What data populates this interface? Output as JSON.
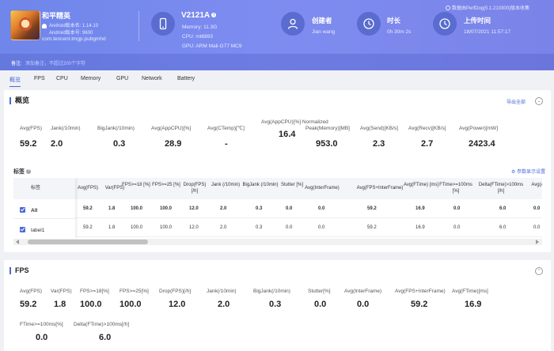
{
  "header": {
    "app_name": "和平精英",
    "version_name": "Android版本名: 1.14.10",
    "version_code": "Android版本号: 9600",
    "package": "com.tencent.tmgp.pubgmhd",
    "device_model": "V2121A",
    "memory": "Memory: 11.3G",
    "cpu": "CPU: mt6893",
    "gpu": "GPU: ARM Mali-G77 MC9",
    "creator_title": "创建者",
    "creator_name": "Jian wang",
    "duration_title": "时长",
    "duration_value": "0h 30m 2s",
    "upload_title": "上传时间",
    "upload_value": "18/07/2021 11:57:17",
    "data_source": "数据由PerfDog(5.1.210300)版本收集",
    "note_label": "备注:",
    "note_placeholder": "添加备注，不超过200个字符"
  },
  "tabs": [
    "概览",
    "FPS",
    "CPU",
    "Memory",
    "GPU",
    "Network",
    "Battery"
  ],
  "overview": {
    "title": "概览",
    "export_label": "导出全部",
    "metrics": [
      {
        "label": "Avg(FPS)",
        "value": "59.2"
      },
      {
        "label": "Jank(/10min)",
        "value": "2.0"
      },
      {
        "label": "BigJank(/10min)",
        "value": "0.3"
      },
      {
        "label": "Avg(AppCPU)[%]",
        "value": "28.9"
      },
      {
        "label": "Avg(CTemp)[℃]",
        "value": "-"
      },
      {
        "label": "Avg(AppCPU)[%] Normalized",
        "value": "16.4"
      },
      {
        "label": "Peak(Memory)[MB]",
        "value": "953.0"
      },
      {
        "label": "Avg(Send)[KB/s]",
        "value": "2.3"
      },
      {
        "label": "Avg(Recv)[KB/s]",
        "value": "2.7"
      },
      {
        "label": "Avg(Power)[mW]",
        "value": "2423.4"
      }
    ],
    "tags_title": "标签",
    "tags_help": "?",
    "settings_label": "参数显示设置",
    "table": {
      "tag_header": "标签",
      "headers": [
        "Avg(FPS)",
        "Var(FPS)",
        "FPS>=18 [%]",
        "FPS>=25 [%]",
        "Drop(FPS) [/h]",
        "Jank (/10min)",
        "BigJank (/10min)",
        "Stutter [%]",
        "Avg(InterFrame)",
        "Avg(FPS+InterFrame)",
        "Avg(FTime) [ms]",
        "FTime>=100ms [%]",
        "Delta(FTime)>100ms [/h]",
        "Avg(A..."
      ],
      "rows": [
        {
          "label": "All",
          "values": [
            "59.2",
            "1.8",
            "100.0",
            "100.0",
            "12.0",
            "2.0",
            "0.3",
            "0.0",
            "0.0",
            "59.2",
            "16.9",
            "0.0",
            "6.0",
            "0.0"
          ]
        },
        {
          "label": "label1",
          "values": [
            "59.2",
            "1.8",
            "100.0",
            "100.0",
            "12.0",
            "2.0",
            "0.3",
            "0.0",
            "0.0",
            "59.2",
            "16.9",
            "0.0",
            "6.0",
            "0.0"
          ]
        }
      ]
    }
  },
  "fps": {
    "title": "FPS",
    "metrics": [
      {
        "label": "Avg(FPS)",
        "value": "59.2"
      },
      {
        "label": "Var(FPS)",
        "value": "1.8"
      },
      {
        "label": "FPS>=18[%]",
        "value": "100.0"
      },
      {
        "label": "FPS>=25[%]",
        "value": "100.0"
      },
      {
        "label": "Drop(FPS)[/h]",
        "value": "12.0"
      },
      {
        "label": "Jank(/10min)",
        "value": "2.0"
      },
      {
        "label": "BigJank(/10min)",
        "value": "0.3"
      },
      {
        "label": "Stutter[%]",
        "value": "0.0"
      },
      {
        "label": "Avg(InterFrame)",
        "value": "0.0"
      },
      {
        "label": "Avg(FPS+InterFrame)",
        "value": "59.2"
      },
      {
        "label": "Avg(FTime)[ms]",
        "value": "16.9"
      },
      {
        "label": "FTime>=100ms[%]",
        "value": "0.0"
      },
      {
        "label": "Delta(FTime)>100ms[/h]",
        "value": "6.0"
      }
    ]
  },
  "colors": {
    "header": "#7a87ee",
    "accent": "#4a68d8",
    "icon_circle": "#5a6cd0"
  }
}
